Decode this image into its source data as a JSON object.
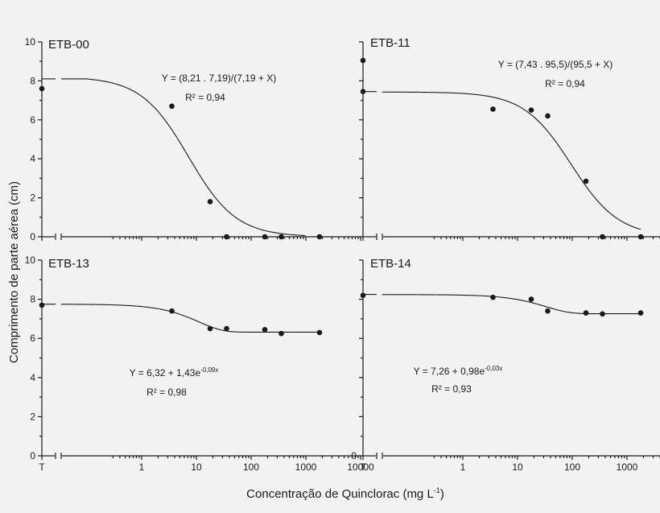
{
  "figure": {
    "ylabel": "Comprimento de parte aérea (cm)",
    "xlabel": "Concentração de Quinclorac (mg L",
    "xlabel_sup": "-1",
    "xlabel_end": ")"
  },
  "chart_data": [
    {
      "type": "scatter",
      "title": "ETB-00",
      "equation": "Y = (8,21 . 7,19)/(7,19 + X)",
      "r2": "R² = 0,94",
      "model": {
        "kind": "loglogistic",
        "a": 8.21,
        "b": 7.19
      },
      "x_control_label": "T",
      "x": [
        "T",
        3.56,
        17.8,
        35.6,
        178,
        356,
        1780
      ],
      "y": [
        7.6,
        6.7,
        1.8,
        0,
        0,
        0,
        0
      ],
      "control_curve_y": 8.1,
      "curve_xmax": 1000,
      "xscale": "log",
      "xlim": [
        0.1,
        10000
      ],
      "ylim": [
        0,
        10
      ],
      "yticks": [
        "0",
        "2",
        "4",
        "6",
        "8",
        "10"
      ],
      "xticks": [
        "T",
        "1",
        "10",
        "100",
        "1000",
        "10000"
      ]
    },
    {
      "type": "scatter",
      "title": "ETB-11",
      "equation": "Y = (7,43 . 95,5)/(95,5 + X)",
      "r2": "R² = 0,94",
      "model": {
        "kind": "loglogistic",
        "a": 7.43,
        "b": 95.5
      },
      "x_control_label": "T",
      "x": [
        "T",
        "T",
        3.56,
        17.8,
        35.6,
        178,
        356,
        1780
      ],
      "y": [
        9.05,
        7.45,
        6.55,
        6.5,
        6.2,
        2.85,
        0,
        0
      ],
      "control_curve_y": 7.45,
      "curve_xmax": 1780,
      "xscale": "log",
      "xlim": [
        0.1,
        10000
      ],
      "ylim": [
        0,
        10
      ],
      "yticks": [],
      "xticks": [
        "T",
        "1",
        "10",
        "100",
        "1000",
        "10000"
      ]
    },
    {
      "type": "scatter",
      "title": "ETB-13",
      "equation": "Y = 6,32 + 1,43e",
      "equation_sup": "-0,09x",
      "r2": "R² = 0,98",
      "model": {
        "kind": "exp",
        "c": 6.32,
        "a": 1.43,
        "k": 0.09
      },
      "x_control_label": "T",
      "x": [
        "T",
        3.56,
        17.8,
        35.6,
        178,
        356,
        1780
      ],
      "y": [
        7.7,
        7.4,
        6.5,
        6.5,
        6.45,
        6.25,
        6.3
      ],
      "control_curve_y": 7.75,
      "curve_xmax": 1780,
      "xscale": "log",
      "xlim": [
        0.1,
        10000
      ],
      "ylim": [
        0,
        10
      ],
      "yticks": [
        "0",
        "2",
        "4",
        "6",
        "8",
        "10"
      ],
      "xticks": [
        "T",
        "1",
        "10",
        "100",
        "1000",
        "10000"
      ]
    },
    {
      "type": "scatter",
      "title": "ETB-14",
      "equation": "Y = 7,26 + 0,98e",
      "equation_sup": "-0,03x",
      "r2": "R² = 0,93",
      "model": {
        "kind": "exp",
        "c": 7.26,
        "a": 0.98,
        "k": 0.03
      },
      "x_control_label": "T",
      "x": [
        "T",
        3.56,
        17.8,
        35.6,
        178,
        356,
        1780
      ],
      "y": [
        8.2,
        8.1,
        8.0,
        7.4,
        7.3,
        7.25,
        7.3
      ],
      "control_curve_y": 8.25,
      "curve_xmax": 1780,
      "xscale": "log",
      "xlim": [
        0.1,
        10000
      ],
      "ylim": [
        0,
        10
      ],
      "yticks": [
        "0"
      ],
      "xticks": [
        "T",
        "1",
        "10",
        "100",
        "1000",
        "10000"
      ]
    }
  ]
}
